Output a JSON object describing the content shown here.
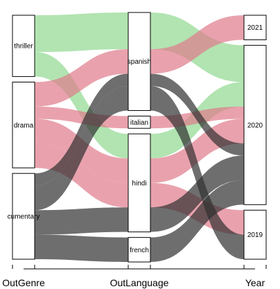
{
  "chart_data": {
    "type": "alluvial",
    "axes": [
      "OutGenre",
      "OutLanguage",
      "Year"
    ],
    "nodes": {
      "OutGenre": [
        "thriller",
        "drama",
        "documentary"
      ],
      "OutLanguage": [
        "spanish",
        "italian",
        "hindi",
        "french"
      ],
      "Year": [
        "2021",
        "2020",
        "2019"
      ]
    },
    "node_labels": {
      "thriller": "thriller",
      "drama": "drama",
      "documentary": "cumentary",
      "spanish": "spanish",
      "italian": "italian",
      "hindi": "hindi",
      "french": "french",
      "2021": "2021",
      "2020": "2020",
      "2019": "2019"
    },
    "flows": [
      {
        "genre": "thriller",
        "language": "spanish",
        "year": "2020",
        "value": 3
      },
      {
        "genre": "thriller",
        "language": "hindi",
        "year": "2020",
        "value": 2
      },
      {
        "genre": "drama",
        "language": "spanish",
        "year": "2021",
        "value": 2
      },
      {
        "genre": "drama",
        "language": "italian",
        "year": "2020",
        "value": 1
      },
      {
        "genre": "drama",
        "language": "hindi",
        "year": "2020",
        "value": 2
      },
      {
        "genre": "drama",
        "language": "hindi",
        "year": "2019",
        "value": 2
      },
      {
        "genre": "documentary",
        "language": "spanish",
        "year": "2020",
        "value": 1
      },
      {
        "genre": "documentary",
        "language": "spanish",
        "year": "2019",
        "value": 2
      },
      {
        "genre": "documentary",
        "language": "hindi",
        "year": "2020",
        "value": 2
      },
      {
        "genre": "documentary",
        "language": "french",
        "year": "2020",
        "value": 2
      }
    ],
    "colors": {
      "thriller": "#90d890",
      "drama": "#e07a8a",
      "documentary": "#303030"
    },
    "flow_opacity": 0.7,
    "legend": false,
    "grid": false
  }
}
